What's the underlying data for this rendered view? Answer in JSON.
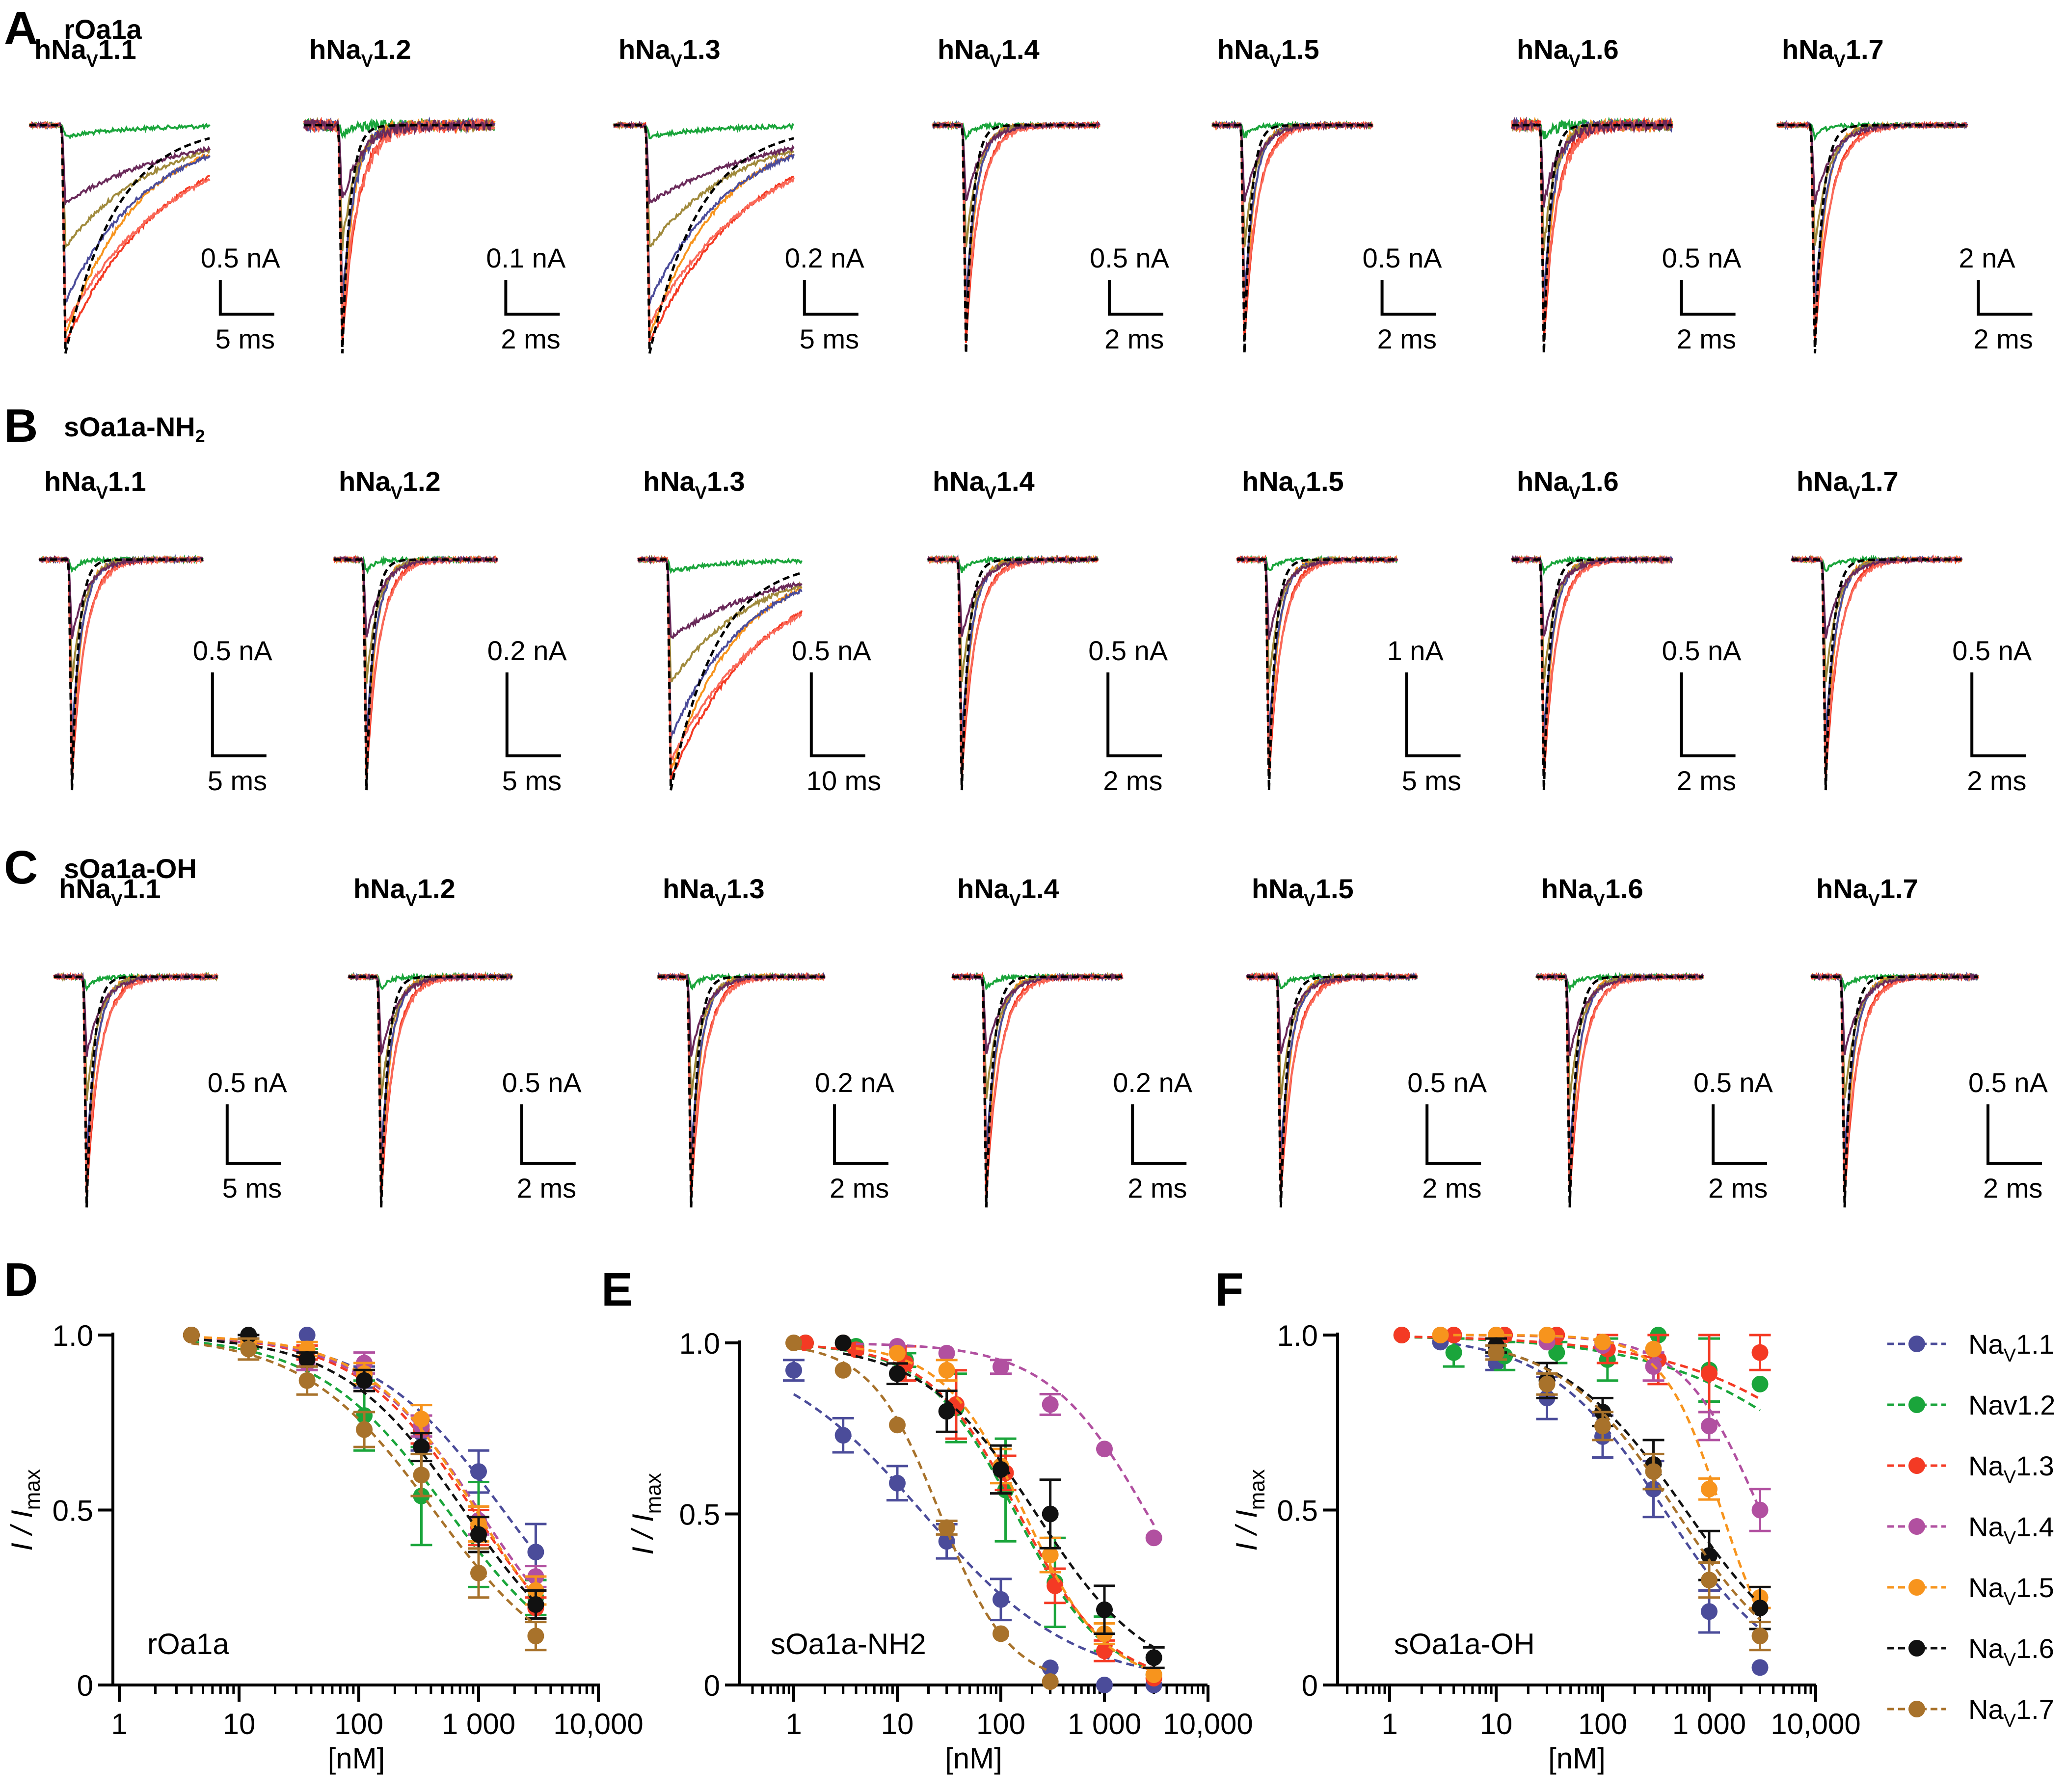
{
  "colors": {
    "Nav1.1": "#4b4c9a",
    "Nav1.2": "#1aa53b",
    "Nav1.3": "#f43a24",
    "Nav1.4": "#b150a0",
    "Nav1.5": "#f7941d",
    "Nav1.6": "#111111",
    "Nav1.7": "#a8722b",
    "control": "#000000",
    "trace_extra": [
      "#f7941d",
      "#4b4c9a",
      "#a08a3c",
      "#f43a24",
      "#fa6a5a",
      "#6a2a5a"
    ]
  },
  "trace_rows": [
    {
      "letter": "A",
      "peptide": "rOa1a",
      "peptide_sub": "",
      "panels": [
        {
          "channel": "hNa",
          "sub": "V",
          "num": "1.1",
          "amp": "0.5 nA",
          "time": "5 ms"
        },
        {
          "channel": "hNa",
          "sub": "V",
          "num": "1.2",
          "amp": "0.1 nA",
          "time": "2 ms"
        },
        {
          "channel": "hNa",
          "sub": "V",
          "num": "1.3",
          "amp": "0.2 nA",
          "time": "5 ms"
        },
        {
          "channel": "hNa",
          "sub": "V",
          "num": "1.4",
          "amp": "0.5 nA",
          "time": "2 ms"
        },
        {
          "channel": "hNa",
          "sub": "V",
          "num": "1.5",
          "amp": "0.5 nA",
          "time": "2 ms"
        },
        {
          "channel": "hNa",
          "sub": "V",
          "num": "1.6",
          "amp": "0.5 nA",
          "time": "2 ms"
        },
        {
          "channel": "hNa",
          "sub": "V",
          "num": "1.7",
          "amp": "2 nA",
          "time": "2 ms"
        }
      ]
    },
    {
      "letter": "B",
      "peptide": "sOa1a-NH",
      "peptide_sub": "2",
      "panels": [
        {
          "channel": "hNa",
          "sub": "V",
          "num": "1.1",
          "amp": "0.5 nA",
          "time": "5 ms"
        },
        {
          "channel": "hNa",
          "sub": "V",
          "num": "1.2",
          "amp": "0.2 nA",
          "time": "5 ms"
        },
        {
          "channel": "hNa",
          "sub": "V",
          "num": "1.3",
          "amp": "0.5 nA",
          "time": "10 ms"
        },
        {
          "channel": "hNa",
          "sub": "V",
          "num": "1.4",
          "amp": "0.5 nA",
          "time": "2 ms"
        },
        {
          "channel": "hNa",
          "sub": "V",
          "num": "1.5",
          "amp": "1 nA",
          "time": "5 ms"
        },
        {
          "channel": "hNa",
          "sub": "V",
          "num": "1.6",
          "amp": "0.5 nA",
          "time": "2 ms"
        },
        {
          "channel": "hNa",
          "sub": "V",
          "num": "1.7",
          "amp": "0.5 nA",
          "time": "2 ms"
        }
      ]
    },
    {
      "letter": "C",
      "peptide": "sOa1a-OH",
      "peptide_sub": "",
      "panels": [
        {
          "channel": "hNa",
          "sub": "V",
          "num": "1.1",
          "amp": "0.5 nA",
          "time": "5 ms"
        },
        {
          "channel": "hNa",
          "sub": "V",
          "num": "1.2",
          "amp": "0.5 nA",
          "time": "2 ms"
        },
        {
          "channel": "hNa",
          "sub": "V",
          "num": "1.3",
          "amp": "0.2 nA",
          "time": "2 ms"
        },
        {
          "channel": "hNa",
          "sub": "V",
          "num": "1.4",
          "amp": "0.2 nA",
          "time": "2 ms"
        },
        {
          "channel": "hNa",
          "sub": "V",
          "num": "1.5",
          "amp": "0.5 nA",
          "time": "2 ms"
        },
        {
          "channel": "hNa",
          "sub": "V",
          "num": "1.6",
          "amp": "0.5 nA",
          "time": "2 ms"
        },
        {
          "channel": "hNa",
          "sub": "V",
          "num": "1.7",
          "amp": "0.5 nA",
          "time": "2 ms"
        }
      ]
    }
  ],
  "legend": {
    "placement": "right",
    "entries": [
      {
        "key": "Nav1.1",
        "base": "Na",
        "sub": "V",
        "num": "1.1"
      },
      {
        "key": "Nav1.2",
        "base": "Nav1.2",
        "sub": "",
        "num": ""
      },
      {
        "key": "Nav1.3",
        "base": "Na",
        "sub": "V",
        "num": "1.3"
      },
      {
        "key": "Nav1.4",
        "base": "Na",
        "sub": "V",
        "num": "1.4"
      },
      {
        "key": "Nav1.5",
        "base": "Na",
        "sub": "V",
        "num": "1.5"
      },
      {
        "key": "Nav1.6",
        "base": "Na",
        "sub": "V",
        "num": "1.6"
      },
      {
        "key": "Nav1.7",
        "base": "Na",
        "sub": "V",
        "num": "1.7"
      }
    ]
  },
  "chart_data": [
    {
      "letter": "D",
      "type": "scatter",
      "title": "rOa1a",
      "xlabel": "[nM]",
      "ylabel_main": "I / I",
      "ylabel_sub": "max",
      "xscale": "log",
      "xlim": [
        1,
        10000
      ],
      "ylim": [
        0,
        1.0
      ],
      "xticks": [
        {
          "v": 1,
          "label": "1"
        },
        {
          "v": 10,
          "label": "10"
        },
        {
          "v": 100,
          "label": "100"
        },
        {
          "v": 1000,
          "label": "1 000"
        },
        {
          "v": 10000,
          "label": "10,000"
        }
      ],
      "yticks": [
        {
          "v": 0,
          "label": "0"
        },
        {
          "v": 0.5,
          "label": "0.5"
        },
        {
          "v": 1.0,
          "label": "1.0"
        }
      ],
      "fit": "dashed Hill curve per series",
      "series": [
        {
          "name": "Nav1.1",
          "x": [
            4,
            12,
            37,
            111,
            333,
            1000,
            3000
          ],
          "y": [
            1.0,
            0.99,
            1.0,
            0.88,
            0.72,
            0.61,
            0.38
          ],
          "err": [
            0,
            0.01,
            0,
            0.03,
            0.05,
            0.06,
            0.08
          ],
          "ic50": 1600,
          "hill": 0.8
        },
        {
          "name": "Nav1.2",
          "x": [
            4,
            12,
            37,
            111,
            333,
            1000,
            3000
          ],
          "y": [
            1.0,
            0.98,
            0.93,
            0.77,
            0.54,
            0.43,
            0.25
          ],
          "err": [
            0,
            0.02,
            0.03,
            0.1,
            0.14,
            0.15,
            0.05
          ],
          "ic50": 550,
          "hill": 0.8
        },
        {
          "name": "Nav1.3",
          "x": [
            4,
            12,
            37,
            111,
            333,
            1000,
            3000
          ],
          "y": [
            1.0,
            0.99,
            0.95,
            0.87,
            0.73,
            0.45,
            0.22
          ],
          "err": [
            0,
            0.01,
            0.02,
            0.03,
            0.04,
            0.05,
            0.03
          ],
          "ic50": 900,
          "hill": 0.9
        },
        {
          "name": "Nav1.4",
          "x": [
            4,
            12,
            37,
            111,
            333,
            1000,
            3000
          ],
          "y": [
            1.0,
            0.99,
            0.92,
            0.92,
            0.74,
            0.47,
            0.31
          ],
          "err": [
            0,
            0.01,
            0.02,
            0.03,
            0.03,
            0.04,
            0.03
          ],
          "ic50": 1000,
          "hill": 0.9
        },
        {
          "name": "Nav1.5",
          "x": [
            4,
            12,
            37,
            111,
            333,
            1000,
            3000
          ],
          "y": [
            1.0,
            0.98,
            0.96,
            0.89,
            0.76,
            0.46,
            0.27
          ],
          "err": [
            0,
            0.01,
            0.02,
            0.03,
            0.04,
            0.05,
            0.04
          ],
          "ic50": 950,
          "hill": 0.95
        },
        {
          "name": "Nav1.6",
          "x": [
            4,
            12,
            37,
            111,
            333,
            1000,
            3000
          ],
          "y": [
            1.0,
            1.0,
            0.93,
            0.87,
            0.68,
            0.43,
            0.23
          ],
          "err": [
            0,
            0.01,
            0.02,
            0.03,
            0.04,
            0.05,
            0.04
          ],
          "ic50": 750,
          "hill": 0.85
        },
        {
          "name": "Nav1.7",
          "x": [
            4,
            12,
            37,
            111,
            333,
            1000,
            3000
          ],
          "y": [
            1.0,
            0.96,
            0.87,
            0.73,
            0.6,
            0.32,
            0.14
          ],
          "err": [
            0,
            0.03,
            0.04,
            0.05,
            0.06,
            0.07,
            0.04
          ],
          "ic50": 420,
          "hill": 0.8
        }
      ]
    },
    {
      "letter": "E",
      "type": "scatter",
      "title": "sOa1a-NH2",
      "xlabel": "[nM]",
      "ylabel_main": "I / I",
      "ylabel_sub": "max",
      "xscale": "log",
      "xlim": [
        0.3,
        10000
      ],
      "ylim": [
        0,
        1.0
      ],
      "xticks": [
        {
          "v": 1,
          "label": "1"
        },
        {
          "v": 10,
          "label": "10"
        },
        {
          "v": 100,
          "label": "100"
        },
        {
          "v": 1000,
          "label": "1 000"
        },
        {
          "v": 10000,
          "label": "10,000"
        }
      ],
      "yticks": [
        {
          "v": 0,
          "label": "0"
        },
        {
          "v": 0.5,
          "label": "0.5"
        },
        {
          "v": 1.0,
          "label": "1.0"
        }
      ],
      "fit": "dashed Hill curve per series",
      "series": [
        {
          "name": "Nav1.1",
          "x": [
            1,
            3,
            10,
            30,
            100,
            300,
            1000,
            3000
          ],
          "y": [
            0.92,
            0.73,
            0.59,
            0.42,
            0.25,
            0.05,
            0.0,
            0.0
          ],
          "err": [
            0.03,
            0.05,
            0.05,
            0.05,
            0.06,
            0,
            0,
            0
          ],
          "ic50": 18,
          "hill": 0.6
        },
        {
          "name": "Nav1.2",
          "x": [
            1.3,
            4,
            12,
            37,
            111,
            333,
            1000,
            3000
          ],
          "y": [
            1.0,
            0.99,
            0.95,
            0.81,
            0.57,
            0.3,
            0.15,
            0.03
          ],
          "err": [
            0,
            0,
            0.02,
            0.1,
            0.15,
            0.13,
            0.05,
            0
          ],
          "ic50": 140,
          "hill": 1.0
        },
        {
          "name": "Nav1.3",
          "x": [
            1.3,
            4,
            12,
            37,
            111,
            333,
            1000,
            3000
          ],
          "y": [
            1.0,
            0.98,
            0.94,
            0.82,
            0.62,
            0.29,
            0.1,
            0.02
          ],
          "err": [
            0,
            0,
            0.05,
            0.1,
            0.05,
            0.05,
            0.03,
            0
          ],
          "ic50": 150,
          "hill": 1.0
        },
        {
          "name": "Nav1.4",
          "x": [
            3,
            10,
            30,
            100,
            300,
            1000,
            3000
          ],
          "y": [
            1.0,
            0.99,
            0.97,
            0.93,
            0.82,
            0.69,
            0.43
          ],
          "err": [
            0,
            0,
            0,
            0.02,
            0.03,
            0,
            0
          ],
          "ic50": 2600,
          "hill": 0.9
        },
        {
          "name": "Nav1.5",
          "x": [
            3,
            10,
            30,
            100,
            300,
            1000,
            3000
          ],
          "y": [
            1.0,
            0.97,
            0.92,
            0.64,
            0.38,
            0.15,
            0.03
          ],
          "err": [
            0,
            0,
            0.03,
            0.05,
            0.05,
            0.03,
            0
          ],
          "ic50": 170,
          "hill": 1.1
        },
        {
          "name": "Nav1.6",
          "x": [
            3,
            10,
            30,
            100,
            300,
            1000,
            3000
          ],
          "y": [
            1.0,
            0.91,
            0.8,
            0.63,
            0.5,
            0.22,
            0.08
          ],
          "err": [
            0,
            0.03,
            0.06,
            0.07,
            0.1,
            0.07,
            0.03
          ],
          "ic50": 220,
          "hill": 0.8
        },
        {
          "name": "Nav1.7",
          "x": [
            1,
            3,
            10,
            30,
            100,
            300
          ],
          "y": [
            1.0,
            0.92,
            0.76,
            0.46,
            0.15,
            0.01
          ],
          "err": [
            0,
            0,
            0,
            0.02,
            0,
            0
          ],
          "ic50": 26,
          "hill": 1.3
        }
      ]
    },
    {
      "letter": "F",
      "type": "scatter",
      "title": "sOa1a-OH",
      "xlabel": "[nM]",
      "ylabel_main": "I / I",
      "ylabel_sub": "max",
      "xscale": "log",
      "xlim": [
        0.3,
        10000
      ],
      "ylim": [
        0,
        1.0
      ],
      "xticks": [
        {
          "v": 1,
          "label": "1"
        },
        {
          "v": 10,
          "label": "10"
        },
        {
          "v": 100,
          "label": "100"
        },
        {
          "v": 1000,
          "label": "1 000"
        },
        {
          "v": 10000,
          "label": "10,000"
        }
      ],
      "yticks": [
        {
          "v": 0,
          "label": "0"
        },
        {
          "v": 0.5,
          "label": "0.5"
        },
        {
          "v": 1.0,
          "label": "1.0"
        }
      ],
      "fit": "dashed Hill curve per series",
      "series": [
        {
          "name": "Nav1.1",
          "x": [
            3,
            10,
            30,
            100,
            300,
            1000,
            3000
          ],
          "y": [
            0.98,
            0.92,
            0.82,
            0.71,
            0.56,
            0.21,
            0.05
          ],
          "err": [
            0,
            0.02,
            0.06,
            0.06,
            0.08,
            0.06,
            0
          ],
          "ic50": 380,
          "hill": 0.8
        },
        {
          "name": "Nav1.2",
          "x": [
            1.3,
            4,
            12,
            37,
            111,
            333,
            1000,
            3000
          ],
          "y": [
            1.0,
            0.95,
            0.94,
            0.95,
            0.93,
            1.0,
            0.9,
            0.86
          ],
          "err": [
            0,
            0.04,
            0.04,
            0.03,
            0.06,
            0,
            0.09,
            0
          ],
          "ic50": 40000,
          "hill": 0.5
        },
        {
          "name": "Nav1.3",
          "x": [
            1.3,
            4,
            12,
            37,
            111,
            333,
            1000,
            3000
          ],
          "y": [
            1.0,
            1.0,
            1.0,
            1.0,
            0.96,
            0.93,
            0.89,
            0.95
          ],
          "err": [
            0,
            0,
            0,
            0,
            0.04,
            0.07,
            0.11,
            0.05
          ],
          "ic50": 60000,
          "hill": 0.5
        },
        {
          "name": "Nav1.4",
          "x": [
            3,
            10,
            30,
            100,
            300,
            1000,
            3000
          ],
          "y": [
            1.0,
            1.0,
            0.98,
            0.97,
            0.91,
            0.74,
            0.5
          ],
          "err": [
            0,
            0,
            0,
            0,
            0.04,
            0.04,
            0.06
          ],
          "ic50": 3000,
          "hill": 1.2
        },
        {
          "name": "Nav1.5",
          "x": [
            3,
            10,
            30,
            100,
            300,
            1000,
            3000
          ],
          "y": [
            1.0,
            1.0,
            1.0,
            0.98,
            0.96,
            0.56,
            0.25
          ],
          "err": [
            0,
            0,
            0,
            0,
            0,
            0.03,
            0.03
          ],
          "ic50": 1300,
          "hill": 1.6
        },
        {
          "name": "Nav1.6",
          "x": [
            10,
            30,
            100,
            300,
            1000,
            3000
          ],
          "y": [
            0.97,
            0.87,
            0.78,
            0.63,
            0.37,
            0.22
          ],
          "err": [
            0.02,
            0.05,
            0.04,
            0.07,
            0.07,
            0.06
          ],
          "ic50": 600,
          "hill": 0.75
        },
        {
          "name": "Nav1.7",
          "x": [
            10,
            30,
            100,
            300,
            1000,
            3000
          ],
          "y": [
            0.95,
            0.86,
            0.74,
            0.61,
            0.3,
            0.14
          ],
          "err": [
            0.02,
            0.03,
            0.04,
            0.05,
            0.05,
            0.04
          ],
          "ic50": 480,
          "hill": 0.8
        }
      ]
    }
  ]
}
